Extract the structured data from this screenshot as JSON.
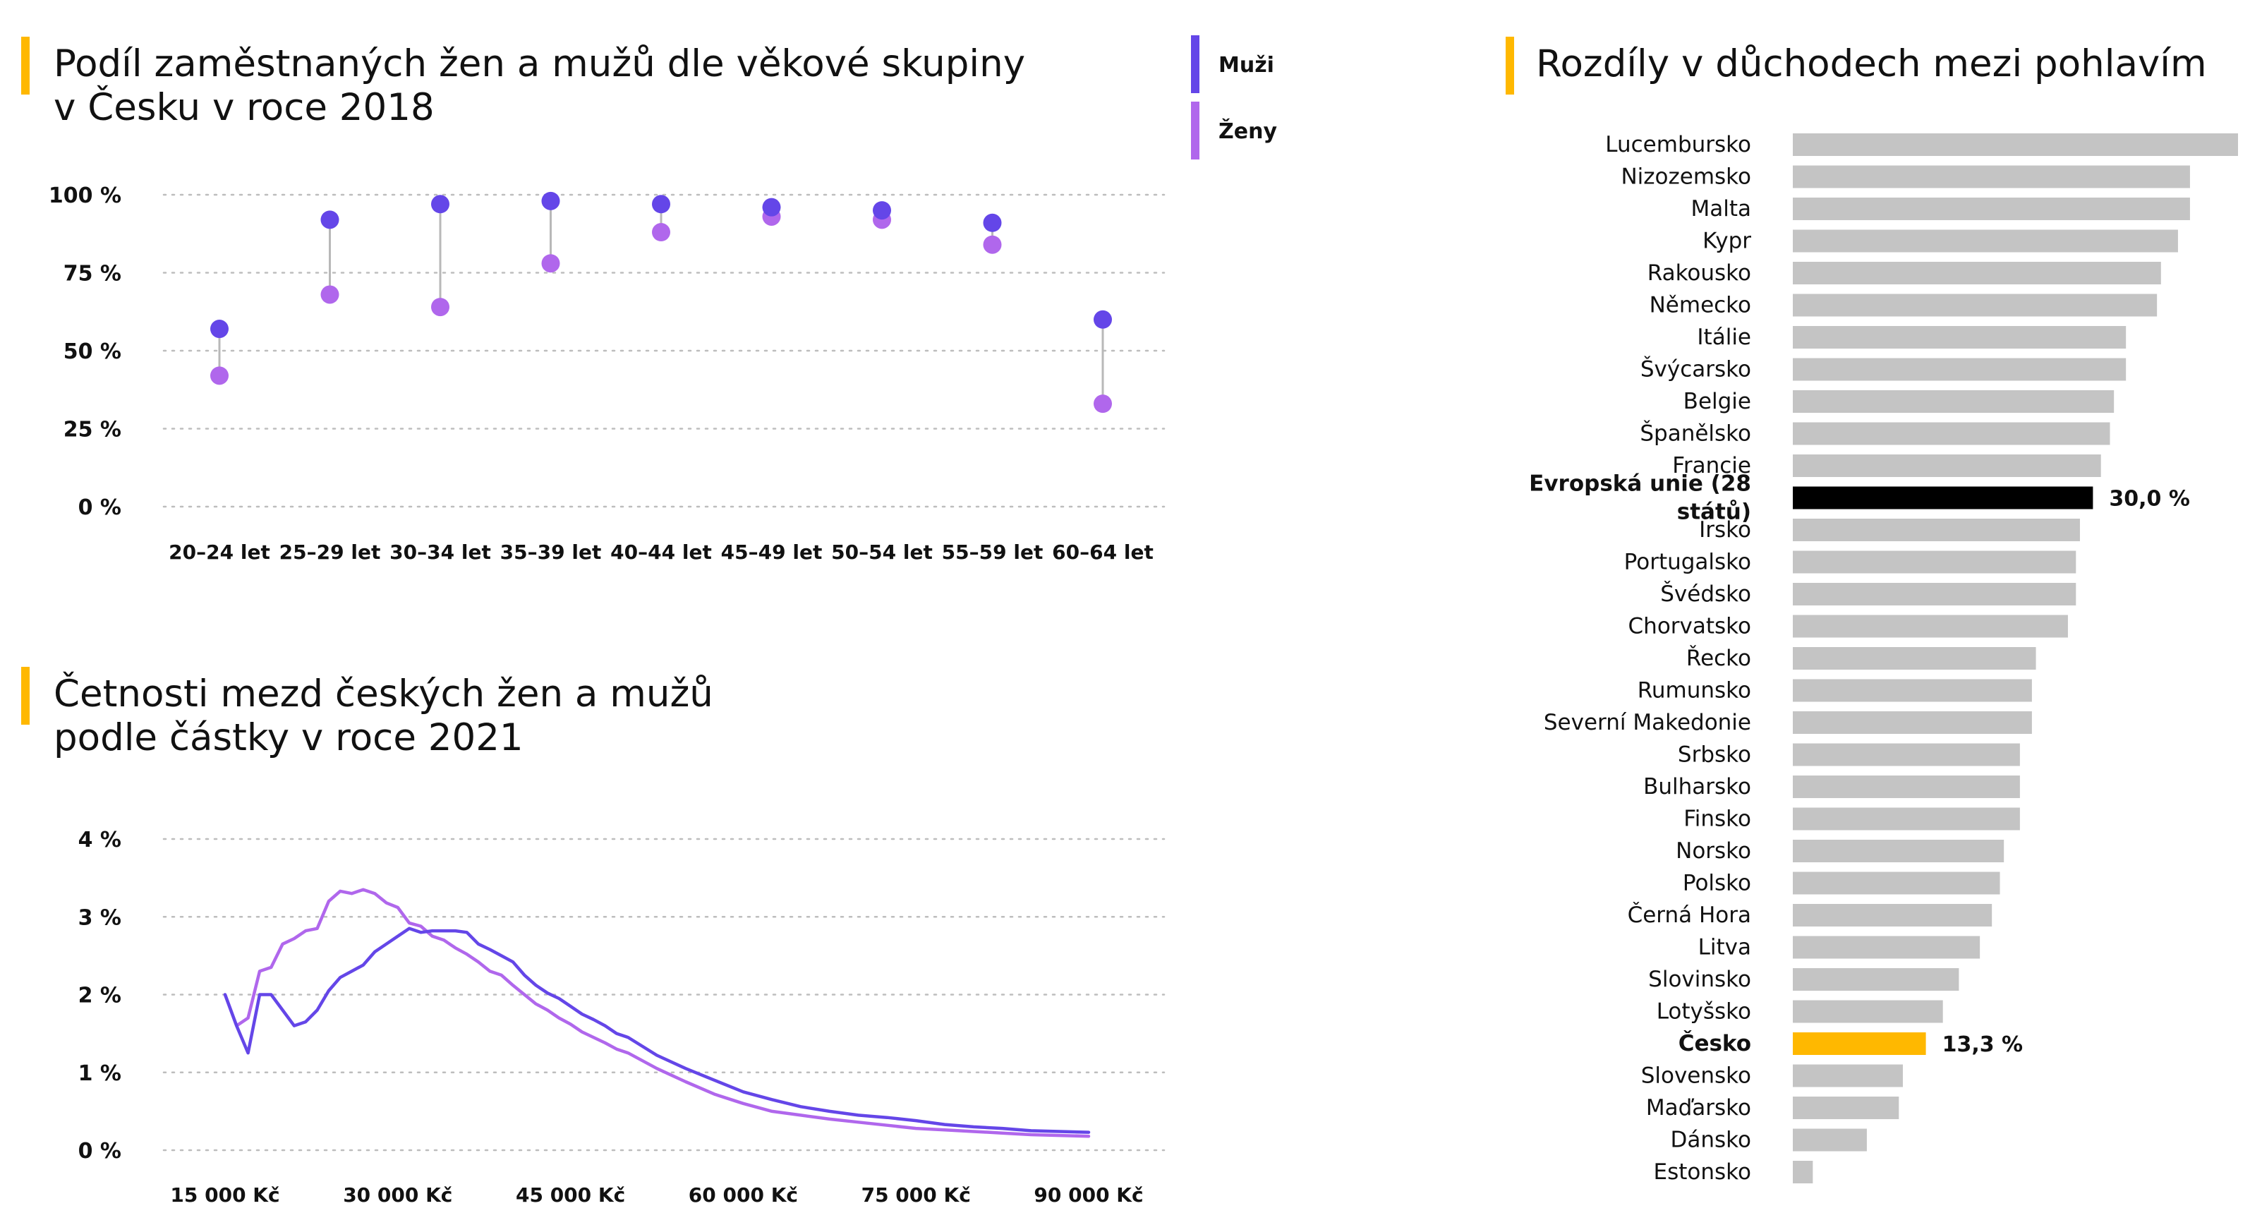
{
  "colors": {
    "men": "#6446E8",
    "women": "#B067EC",
    "accent": "#FFB800",
    "bar": "#C4C4C4",
    "eu": "#000000",
    "cz": "#FFB800",
    "grid": "#BDBDBD",
    "connector": "#B8B8B8"
  },
  "chart_data": [
    {
      "type": "dot-range",
      "title": "Podíl zaměstnaných žen a mužů dle věkové skupiny v Česku v roce 2018",
      "title_lines": [
        "Podíl zaměstnaných žen a mužů dle věkové skupiny",
        "v Česku v roce 2018"
      ],
      "categories": [
        "20–24 let",
        "25–29 let",
        "30–34 let",
        "35–39 let",
        "40–44 let",
        "45–49 let",
        "50–54 let",
        "55–59 let",
        "60–64 let"
      ],
      "series": [
        {
          "name": "Muži",
          "values": [
            57,
            92,
            97,
            98,
            97,
            96,
            95,
            91,
            60
          ]
        },
        {
          "name": "Ženy",
          "values": [
            42,
            68,
            64,
            78,
            88,
            93,
            92,
            84,
            33
          ]
        }
      ],
      "ylim": [
        0,
        100
      ],
      "yticks": [
        0,
        25,
        50,
        75,
        100
      ],
      "ytick_labels": [
        "0 %",
        "25 %",
        "50 %",
        "75 %",
        "100 %"
      ],
      "legend": [
        "Muži",
        "Ženy"
      ],
      "legend_position": "top-right",
      "grid": true
    },
    {
      "type": "line",
      "title": "Četnosti mezd českých žen a mužů podle částky v roce 2021",
      "title_lines": [
        "Četnosti mezd českých žen a mužů",
        "podle částky v roce 2021"
      ],
      "x": [
        15000,
        16000,
        17000,
        18000,
        19000,
        20000,
        21000,
        22000,
        23000,
        24000,
        25000,
        26000,
        27000,
        28000,
        29000,
        30000,
        31000,
        32000,
        33000,
        34000,
        35000,
        36000,
        37000,
        38000,
        39000,
        40000,
        41000,
        42000,
        43000,
        44000,
        45000,
        46000,
        47000,
        48000,
        49000,
        50000,
        52500,
        55000,
        57500,
        60000,
        62500,
        65000,
        67500,
        70000,
        72500,
        75000,
        77500,
        80000,
        82500,
        85000,
        87500,
        90000
      ],
      "series": [
        {
          "name": "Muži",
          "values": [
            2.0,
            1.6,
            1.25,
            2.0,
            2.0,
            1.8,
            1.6,
            1.65,
            1.8,
            2.05,
            2.22,
            2.3,
            2.38,
            2.55,
            2.65,
            2.75,
            2.85,
            2.8,
            2.82,
            2.82,
            2.82,
            2.8,
            2.65,
            2.58,
            2.5,
            2.42,
            2.25,
            2.12,
            2.02,
            1.95,
            1.85,
            1.75,
            1.68,
            1.6,
            1.5,
            1.45,
            1.22,
            1.05,
            0.9,
            0.75,
            0.65,
            0.56,
            0.5,
            0.45,
            0.42,
            0.38,
            0.33,
            0.3,
            0.28,
            0.25,
            0.24,
            0.23
          ]
        },
        {
          "name": "Ženy",
          "values": [
            2.0,
            1.6,
            1.7,
            2.3,
            2.35,
            2.65,
            2.72,
            2.82,
            2.85,
            3.2,
            3.33,
            3.3,
            3.35,
            3.3,
            3.18,
            3.12,
            2.92,
            2.88,
            2.75,
            2.7,
            2.6,
            2.52,
            2.42,
            2.3,
            2.25,
            2.12,
            2.0,
            1.88,
            1.8,
            1.7,
            1.62,
            1.52,
            1.45,
            1.38,
            1.3,
            1.25,
            1.05,
            0.88,
            0.72,
            0.6,
            0.5,
            0.45,
            0.4,
            0.36,
            0.32,
            0.28,
            0.26,
            0.24,
            0.22,
            0.2,
            0.19,
            0.18
          ]
        }
      ],
      "ylim": [
        0,
        4
      ],
      "yticks": [
        0,
        1,
        2,
        3,
        4
      ],
      "ytick_labels": [
        "0 %",
        "1 %",
        "2 %",
        "3 %",
        "4 %"
      ],
      "xticks": [
        15000,
        30000,
        45000,
        60000,
        75000,
        90000
      ],
      "xtick_labels": [
        "15 000 Kč",
        "30 000 Kč",
        "45 000 Kč",
        "60 000 Kč",
        "75 000 Kč",
        "90 000 Kč"
      ],
      "grid": true
    },
    {
      "type": "bar",
      "orientation": "horizontal",
      "title": "Rozdíly v důchodech mezi pohlavím",
      "categories": [
        "Lucembursko",
        "Nizozemsko",
        "Malta",
        "Kypr",
        "Rakousko",
        "Německo",
        "Itálie",
        "Švýcarsko",
        "Belgie",
        "Španělsko",
        "Francie",
        "Evropská unie (28 států)",
        "Irsko",
        "Portugalsko",
        "Švédsko",
        "Chorvatsko",
        "Řecko",
        "Rumunsko",
        "Severní Makedonie",
        "Srbsko",
        "Bulharsko",
        "Finsko",
        "Norsko",
        "Polsko",
        "Černá Hora",
        "Litva",
        "Slovinsko",
        "Lotyšsko",
        "Česko",
        "Slovensko",
        "Maďarsko",
        "Dánsko",
        "Estonsko"
      ],
      "category_lines": [
        [
          "Lucembursko"
        ],
        [
          "Nizozemsko"
        ],
        [
          "Malta"
        ],
        [
          "Kypr"
        ],
        [
          "Rakousko"
        ],
        [
          "Německo"
        ],
        [
          "Itálie"
        ],
        [
          "Švýcarsko"
        ],
        [
          "Belgie"
        ],
        [
          "Španělsko"
        ],
        [
          "Francie"
        ],
        [
          "Evropská unie (28",
          "států)"
        ],
        [
          "Irsko"
        ],
        [
          "Portugalsko"
        ],
        [
          "Švédsko"
        ],
        [
          "Chorvatsko"
        ],
        [
          "Řecko"
        ],
        [
          "Rumunsko"
        ],
        [
          "Severní Makedonie"
        ],
        [
          "Srbsko"
        ],
        [
          "Bulharsko"
        ],
        [
          "Finsko"
        ],
        [
          "Norsko"
        ],
        [
          "Polsko"
        ],
        [
          "Černá Hora"
        ],
        [
          "Litva"
        ],
        [
          "Slovinsko"
        ],
        [
          "Lotyšsko"
        ],
        [
          "Česko"
        ],
        [
          "Slovensko"
        ],
        [
          "Maďarsko"
        ],
        [
          "Dánsko"
        ],
        [
          "Estonsko"
        ]
      ],
      "values": [
        44.5,
        39.7,
        39.7,
        38.5,
        36.8,
        36.4,
        33.3,
        33.3,
        32.1,
        31.7,
        30.8,
        30.0,
        28.7,
        28.3,
        28.3,
        27.5,
        24.3,
        23.9,
        23.9,
        22.7,
        22.7,
        22.7,
        21.1,
        20.7,
        19.9,
        18.7,
        16.6,
        15.0,
        13.3,
        11.0,
        10.6,
        7.4,
        2.0
      ],
      "highlight": {
        "Evropská unie (28 států)": "eu",
        "Česko": "cz"
      },
      "data_labels": {
        "Evropská unie (28 států)": "30,0 %",
        "Česko": "13,3 %"
      },
      "xlim": [
        0,
        44.5
      ]
    }
  ]
}
